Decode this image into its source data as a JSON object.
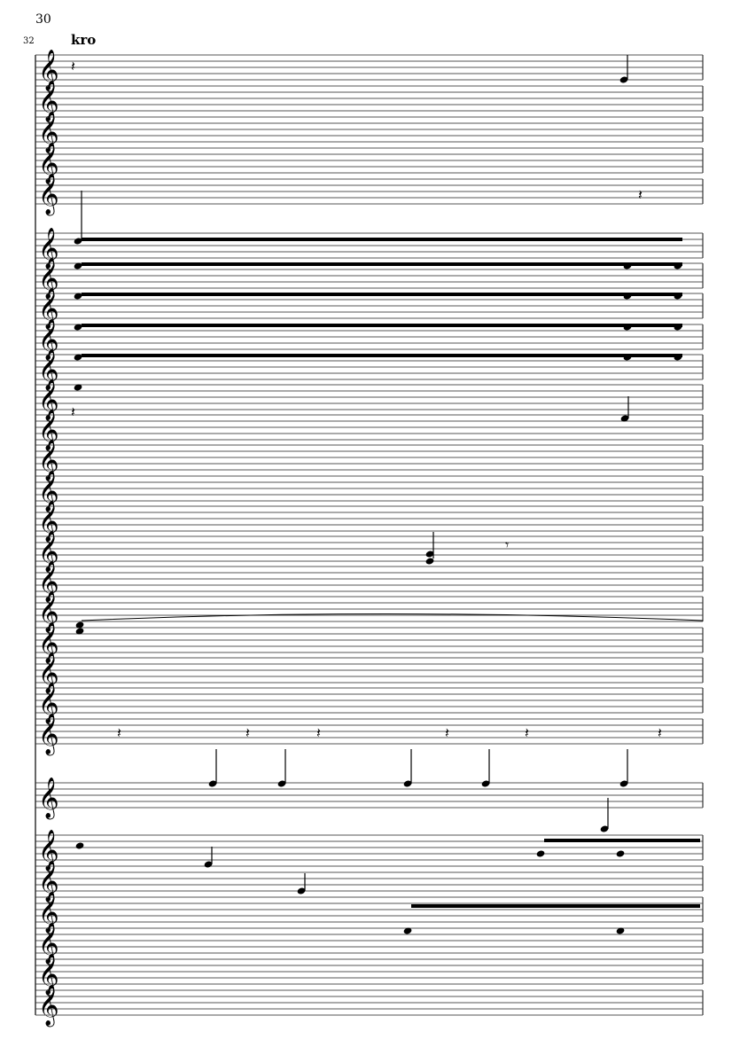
{
  "score": {
    "bar_number": "30",
    "staff_number": "32",
    "rehearsal_text": "kro",
    "clef": "treble",
    "staff_count": 29
  }
}
